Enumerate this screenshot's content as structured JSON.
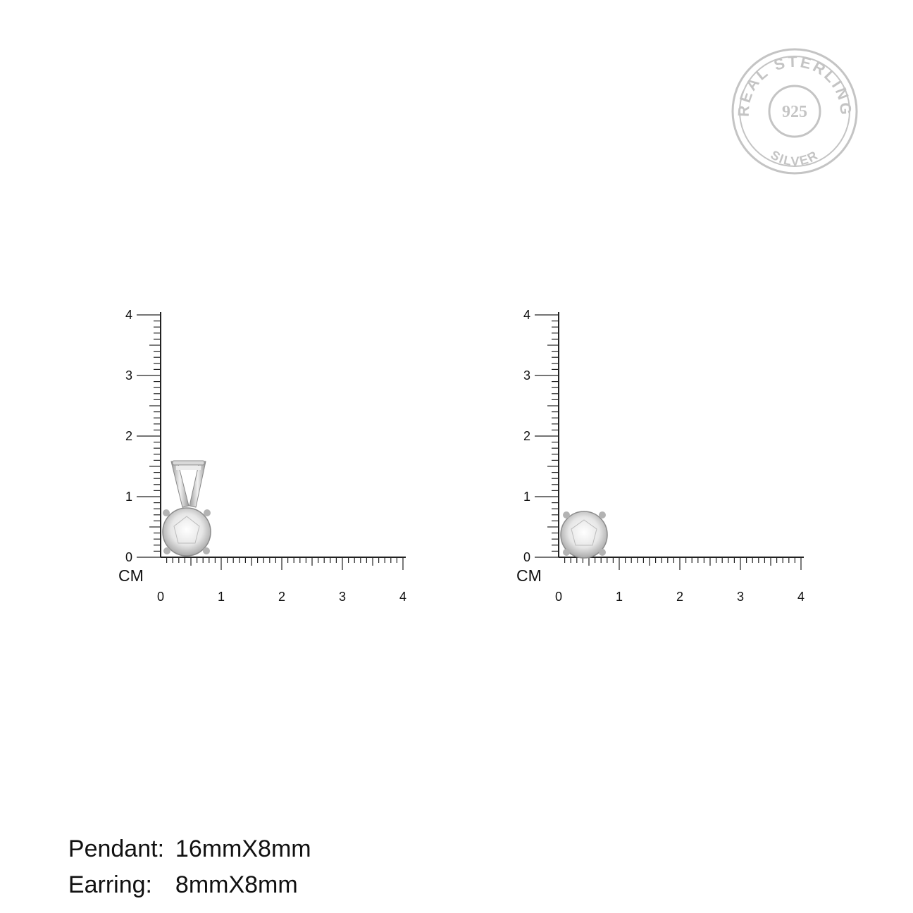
{
  "seal": {
    "top_text": "REAL STERLING",
    "center_text": "925",
    "bottom_text": "SILVER"
  },
  "rulers": [
    {
      "unit_label": "CM",
      "x_ticks": [
        "0",
        "1",
        "2",
        "3",
        "4"
      ],
      "y_ticks": [
        "0",
        "1",
        "2",
        "3",
        "4"
      ],
      "item": "pendant"
    },
    {
      "unit_label": "CM",
      "x_ticks": [
        "0",
        "1",
        "2",
        "3",
        "4"
      ],
      "y_ticks": [
        "0",
        "1",
        "2",
        "3",
        "4"
      ],
      "item": "earring"
    }
  ],
  "specs": [
    {
      "label": "Pendant:",
      "value": "16mmX8mm"
    },
    {
      "label": "Earring:",
      "value": "8mmX8mm"
    }
  ],
  "colors": {
    "axis": "#222222",
    "seal": "#c4c4c4",
    "metal": "#bdbdbd"
  }
}
